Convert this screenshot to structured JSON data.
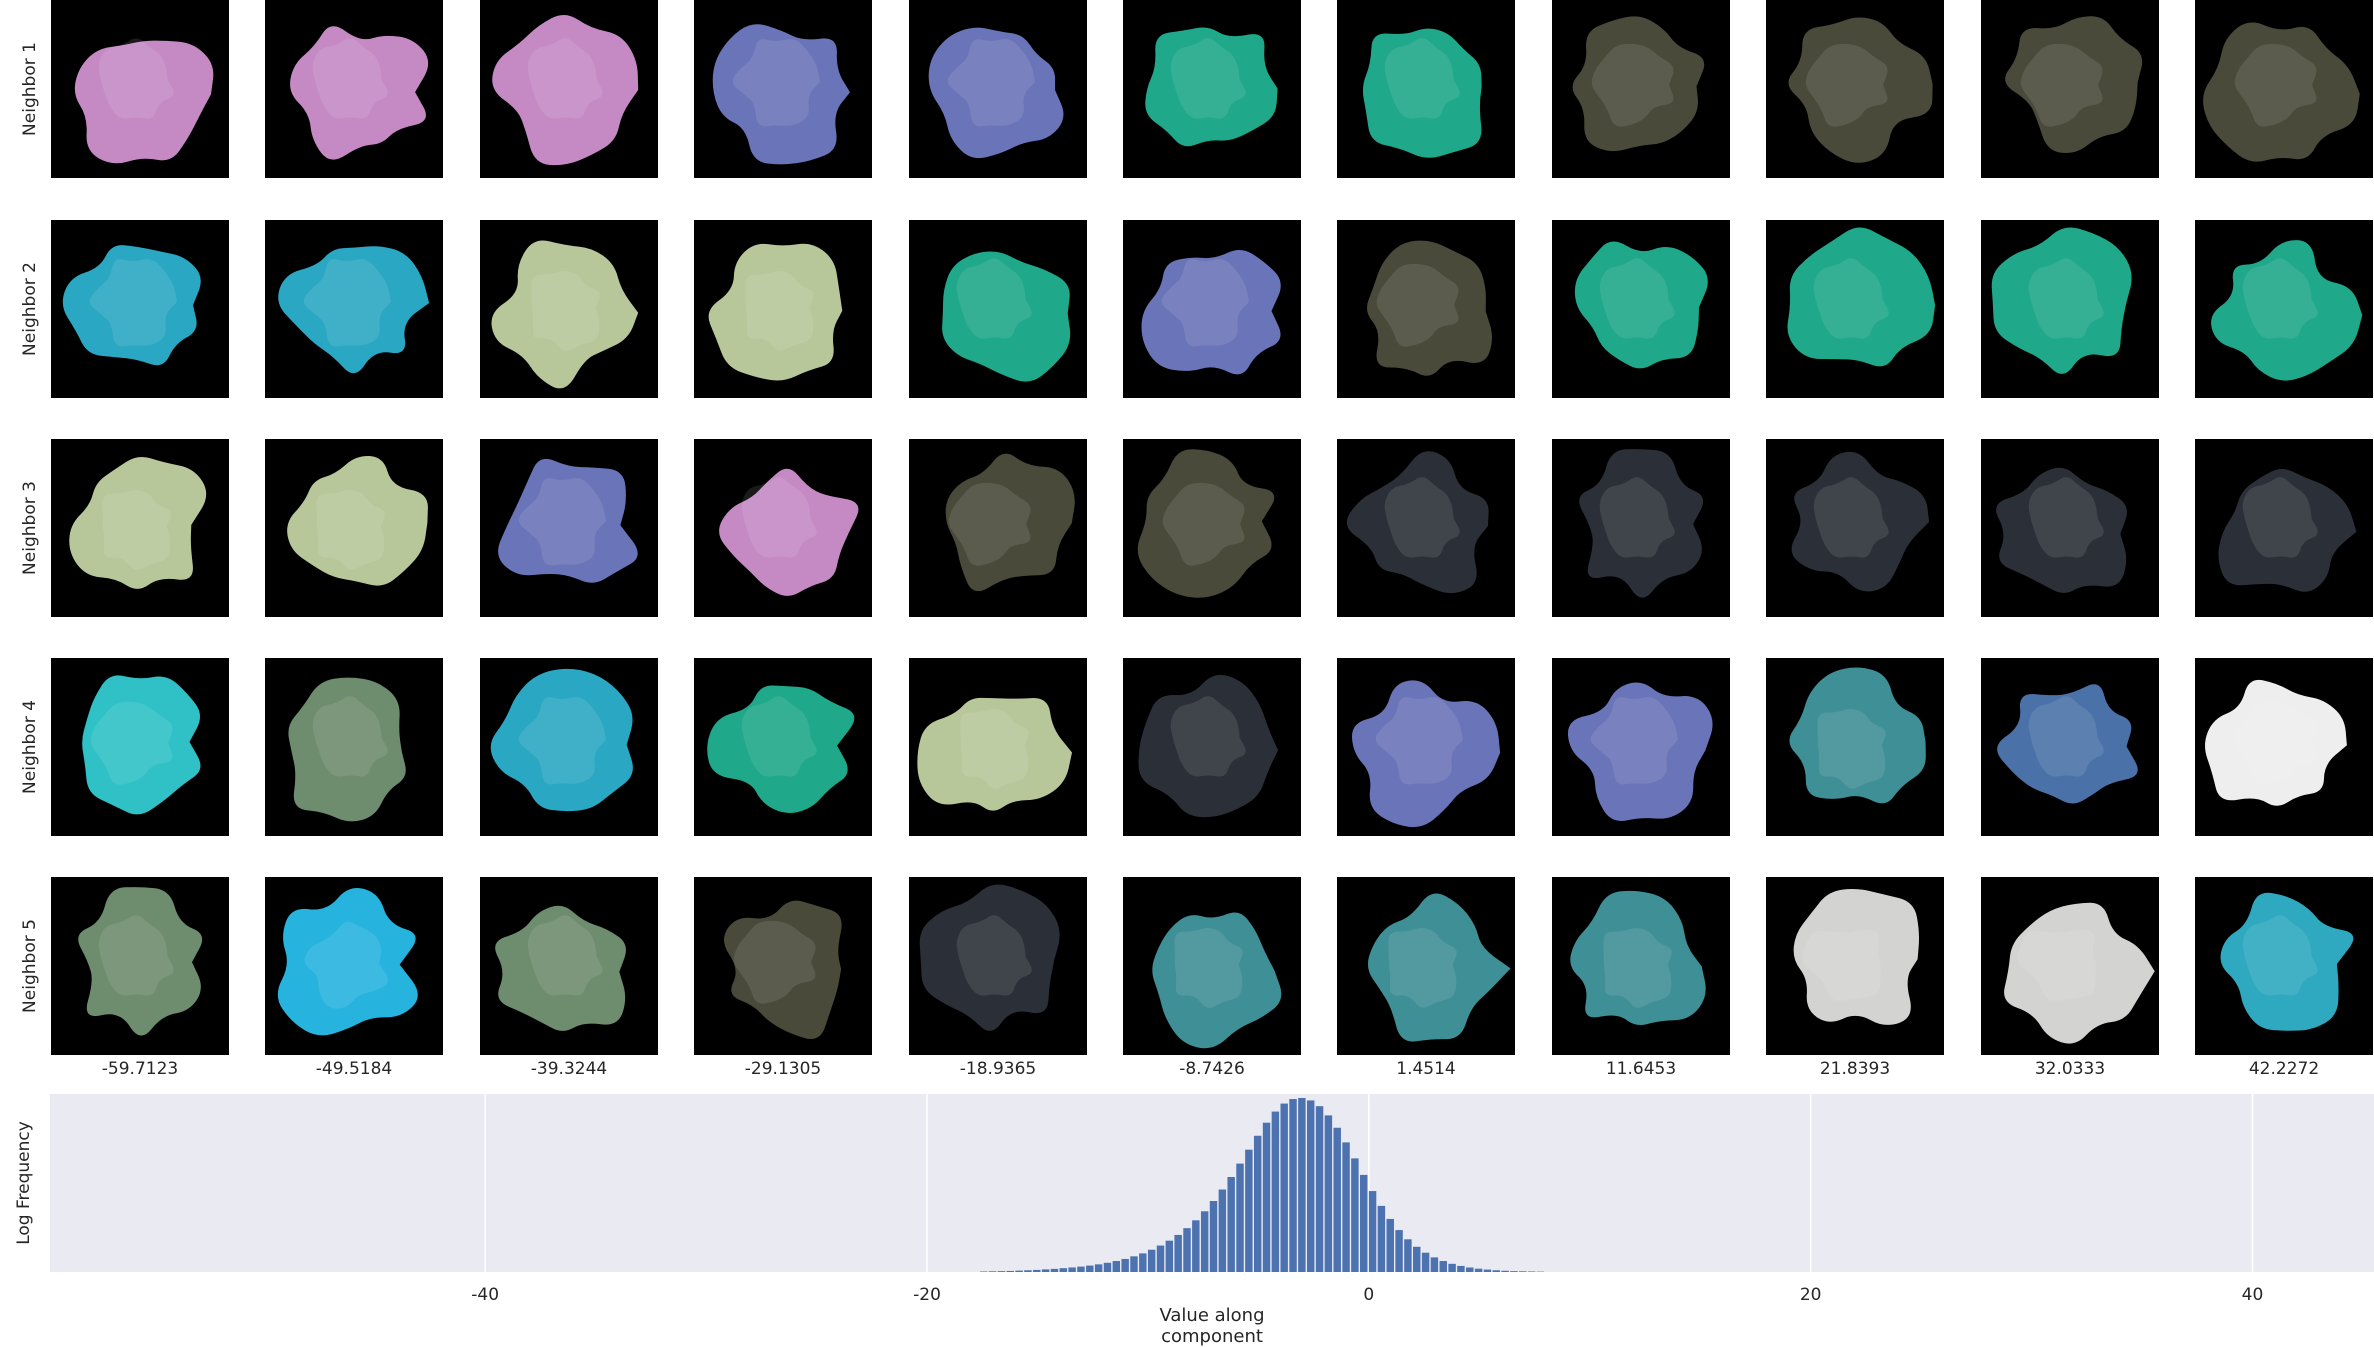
{
  "rows": [
    "Neighbor 1",
    "Neighbor 2",
    "Neighbor 3",
    "Neighbor 4",
    "Neighbor 5"
  ],
  "columns": [
    "-59.7123",
    "-49.5184",
    "-39.3244",
    "-29.1305",
    "-18.9365",
    "-8.7426",
    "1.4514",
    "11.6453",
    "21.8393",
    "32.0333",
    "42.2272"
  ],
  "tiles": [
    [
      "pink-leaf",
      "pink-leaf",
      "pink-leaf",
      "blue-splash",
      "blue-splash",
      "teal-leaf",
      "teal-leaf",
      "dark-olive",
      "dark-olive",
      "dark-olive",
      "dark-olive"
    ],
    [
      "cyan-splash",
      "cyan-splash",
      "green-flower",
      "green-flower",
      "teal-leaf",
      "blue-splash",
      "dark-olive",
      "teal-leaf",
      "teal-leaf",
      "teal-leaf",
      "teal-leaf"
    ],
    [
      "green-flower",
      "green-flower",
      "blue-splash",
      "pink-leaf",
      "dark-olive",
      "dark-olive",
      "dark-rock",
      "dark-rock",
      "dark-rock",
      "dark-rock",
      "dark-rock"
    ],
    [
      "cyan-block",
      "sage-blob",
      "cyan-splash",
      "teal-leaf",
      "green-flower",
      "dark-rock",
      "blue-splash",
      "blue-splash",
      "teal-mottled",
      "blue-band",
      "white-blob"
    ],
    [
      "sage-blob",
      "bright-cyan-splash",
      "sage-blob",
      "dark-olive",
      "dark-rock",
      "teal-mottled",
      "teal-mottled",
      "teal-mottled",
      "grey-white-blob",
      "grey-white-blob",
      "cyan-edge"
    ]
  ],
  "palette": {
    "pink-leaf": "#c58ac4",
    "blue-splash": "#6a74b8",
    "teal-leaf": "#1fa889",
    "dark-olive": "#4a4a3a",
    "cyan-splash": "#2aa7c2",
    "green-flower": "#b7c79a",
    "dark-rock": "#2b3038",
    "cyan-block": "#2fc1c6",
    "sage-blob": "#6e8c6e",
    "teal-mottled": "#3f8f96",
    "blue-band": "#4a72a8",
    "white-blob": "#eeeeee",
    "bright-cyan-splash": "#26b3de",
    "grey-white-blob": "#d3d3d1",
    "cyan-edge": "#2ea9bf",
    "bar": "#4c72b0",
    "plot_bg": "#eaeaf2"
  },
  "chart_data": {
    "type": "bar",
    "xlabel": "Value along component",
    "ylabel": "Log Frequency",
    "xlim": [
      -59.7,
      45.5
    ],
    "x_ticks": [
      "-40",
      "-20",
      "0",
      "20",
      "40"
    ],
    "grid": true,
    "bin_width": 0.4,
    "bins_start": -17.6,
    "values": [
      0.003,
      0.004,
      0.005,
      0.006,
      0.008,
      0.01,
      0.012,
      0.015,
      0.018,
      0.022,
      0.026,
      0.031,
      0.037,
      0.044,
      0.053,
      0.063,
      0.075,
      0.09,
      0.107,
      0.128,
      0.152,
      0.18,
      0.213,
      0.252,
      0.297,
      0.349,
      0.408,
      0.474,
      0.546,
      0.623,
      0.703,
      0.783,
      0.858,
      0.922,
      0.968,
      0.994,
      1.0,
      0.986,
      0.953,
      0.9,
      0.829,
      0.745,
      0.653,
      0.558,
      0.465,
      0.38,
      0.305,
      0.241,
      0.188,
      0.145,
      0.111,
      0.084,
      0.063,
      0.047,
      0.035,
      0.026,
      0.019,
      0.014,
      0.01,
      0.007,
      0.005,
      0.004,
      0.003,
      0.002
    ]
  }
}
